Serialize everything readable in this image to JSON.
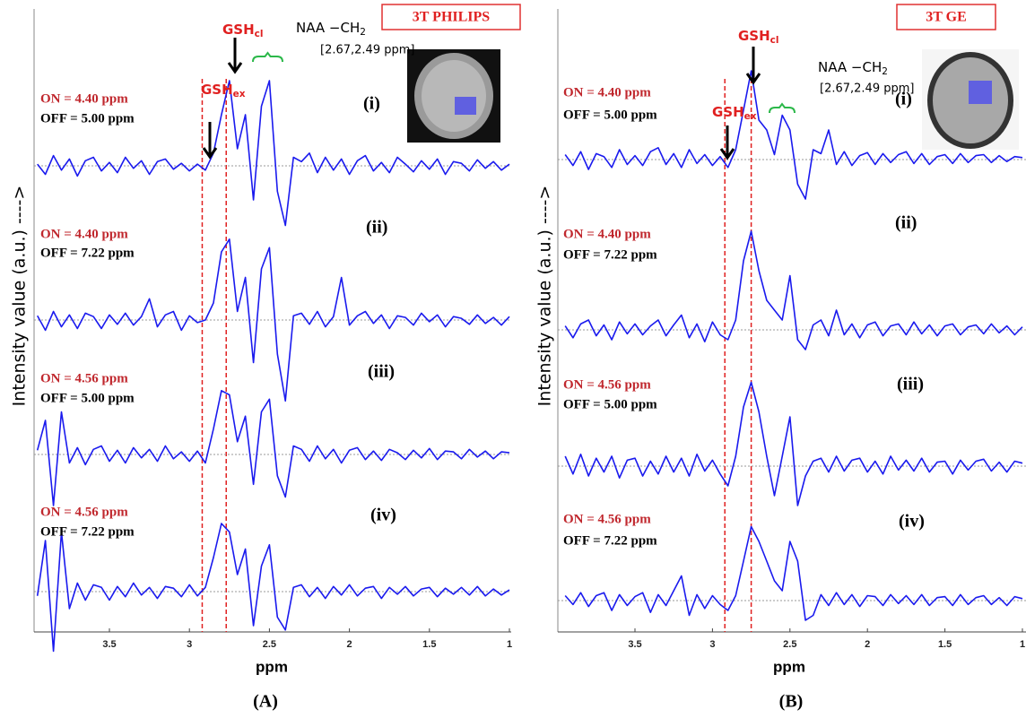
{
  "chart_data": [
    {
      "type": "line",
      "title": "3T PHILIPS",
      "panel_label": "(A)",
      "xlabel": "ppm",
      "ylabel": "Intensity value (a.u.) ---->",
      "xlim": [
        3.97,
        1.0
      ],
      "xticks": [
        3.5,
        3,
        2.5,
        2,
        1.5,
        1
      ],
      "reference_lines": [
        2.92,
        2.77
      ],
      "annotations": {
        "gsh_cl": "GSH",
        "gsh_cl_sub": "cl",
        "gsh_ex": "GSH",
        "gsh_ex_sub": "ex",
        "naa": "NAA −CH",
        "naa_sub": "2",
        "naa_range": "[2.67,2.49 ppm]"
      },
      "x": [
        3.95,
        3.9,
        3.85,
        3.8,
        3.75,
        3.7,
        3.65,
        3.6,
        3.55,
        3.5,
        3.45,
        3.4,
        3.35,
        3.3,
        3.25,
        3.2,
        3.15,
        3.1,
        3.05,
        3.0,
        2.95,
        2.9,
        2.85,
        2.8,
        2.75,
        2.7,
        2.65,
        2.6,
        2.55,
        2.5,
        2.45,
        2.4,
        2.35,
        2.3,
        2.25,
        2.2,
        2.15,
        2.1,
        2.05,
        2.0,
        1.95,
        1.9,
        1.85,
        1.8,
        1.75,
        1.7,
        1.65,
        1.6,
        1.55,
        1.5,
        1.45,
        1.4,
        1.35,
        1.3,
        1.25,
        1.2,
        1.15,
        1.1,
        1.05,
        1.0
      ],
      "series": [
        {
          "name": "(i)",
          "on": "ON = 4.40 ppm",
          "off": "OFF = 5.00 ppm",
          "color": "#1a1aee",
          "values": [
            0.02,
            -0.1,
            0.12,
            -0.05,
            0.08,
            -0.12,
            0.06,
            0.1,
            -0.06,
            0.04,
            -0.08,
            0.1,
            -0.03,
            0.06,
            -0.1,
            0.05,
            0.08,
            -0.04,
            0.03,
            -0.06,
            0.02,
            -0.05,
            0.15,
            0.6,
            1.0,
            0.2,
            0.6,
            -0.4,
            0.7,
            1.0,
            -0.3,
            -0.7,
            0.1,
            0.05,
            0.15,
            -0.08,
            0.1,
            -0.05,
            0.08,
            -0.1,
            0.06,
            0.12,
            -0.06,
            0.04,
            -0.08,
            0.1,
            0.02,
            -0.07,
            0.06,
            -0.04,
            0.08,
            -0.1,
            0.05,
            0.03,
            -0.06,
            0.07,
            -0.03,
            0.05,
            -0.05,
            0.02
          ]
        },
        {
          "name": "(ii)",
          "on": "ON = 4.40 ppm",
          "off": "OFF = 7.22 ppm",
          "color": "#1a1aee",
          "values": [
            0.05,
            -0.12,
            0.1,
            -0.08,
            0.06,
            -0.1,
            0.08,
            0.04,
            -0.1,
            0.06,
            -0.05,
            0.08,
            -0.06,
            0.04,
            0.25,
            -0.08,
            0.06,
            0.1,
            -0.12,
            0.05,
            -0.03,
            0.0,
            0.2,
            0.8,
            0.95,
            0.1,
            0.5,
            -0.5,
            0.6,
            0.85,
            -0.4,
            -0.95,
            0.05,
            0.08,
            -0.05,
            0.1,
            -0.08,
            0.04,
            0.5,
            -0.06,
            0.05,
            0.1,
            -0.04,
            0.06,
            -0.1,
            0.05,
            0.03,
            -0.06,
            0.08,
            -0.02,
            0.06,
            -0.08,
            0.04,
            0.02,
            -0.05,
            0.06,
            -0.04,
            0.03,
            -0.06,
            0.04
          ]
        },
        {
          "name": "(iii)",
          "on": "ON = 4.56 ppm",
          "off": "OFF = 5.00 ppm",
          "color": "#1a1aee",
          "values": [
            0.05,
            0.4,
            -0.6,
            0.5,
            -0.1,
            0.08,
            -0.12,
            0.06,
            0.1,
            -0.08,
            0.05,
            -0.1,
            0.08,
            -0.04,
            0.06,
            -0.08,
            0.1,
            -0.05,
            0.03,
            -0.08,
            0.04,
            -0.1,
            0.3,
            0.75,
            0.7,
            0.15,
            0.45,
            -0.35,
            0.5,
            0.65,
            -0.25,
            -0.5,
            0.1,
            0.06,
            -0.08,
            0.1,
            -0.05,
            0.06,
            -0.1,
            0.05,
            0.08,
            -0.06,
            0.04,
            -0.07,
            0.06,
            0.02,
            -0.06,
            0.05,
            -0.04,
            0.07,
            -0.06,
            0.04,
            0.03,
            -0.05,
            0.06,
            -0.03,
            0.04,
            -0.05,
            0.03,
            0.02
          ]
        },
        {
          "name": "(iv)",
          "on": "ON = 4.56 ppm",
          "off": "OFF = 7.22 ppm",
          "color": "#1a1aee",
          "values": [
            -0.05,
            0.6,
            -0.7,
            0.7,
            -0.2,
            0.1,
            -0.1,
            0.08,
            0.05,
            -0.1,
            0.06,
            -0.06,
            0.1,
            -0.04,
            0.05,
            -0.08,
            0.06,
            0.04,
            -0.06,
            0.08,
            -0.05,
            0.05,
            0.4,
            0.8,
            0.7,
            0.2,
            0.5,
            -0.4,
            0.3,
            0.55,
            -0.3,
            -0.45,
            0.05,
            0.08,
            -0.06,
            0.05,
            -0.08,
            0.06,
            -0.04,
            0.08,
            -0.05,
            0.04,
            0.06,
            -0.08,
            0.05,
            -0.03,
            0.06,
            -0.05,
            0.03,
            0.05,
            -0.06,
            0.04,
            -0.03,
            0.05,
            -0.04,
            0.06,
            -0.05,
            0.03,
            -0.04,
            0.02
          ]
        }
      ]
    },
    {
      "type": "line",
      "title": "3T GE",
      "panel_label": "(B)",
      "xlabel": "ppm",
      "ylabel": "Intensity value (a.u.) ---->",
      "xlim": [
        4.0,
        1.0
      ],
      "xticks": [
        3.5,
        3,
        2.5,
        2,
        1.5,
        1
      ],
      "reference_lines": [
        2.92,
        2.75
      ],
      "annotations": {
        "gsh_cl": "GSH",
        "gsh_cl_sub": "cl",
        "gsh_ex": "GSH",
        "gsh_ex_sub": "ex",
        "naa": "NAA −CH",
        "naa_sub": "2",
        "naa_range": "[2.67,2.49 ppm]"
      },
      "x": [
        3.95,
        3.9,
        3.85,
        3.8,
        3.75,
        3.7,
        3.65,
        3.6,
        3.55,
        3.5,
        3.45,
        3.4,
        3.35,
        3.3,
        3.25,
        3.2,
        3.15,
        3.1,
        3.05,
        3.0,
        2.95,
        2.9,
        2.85,
        2.8,
        2.75,
        2.7,
        2.65,
        2.6,
        2.55,
        2.5,
        2.45,
        2.4,
        2.35,
        2.3,
        2.25,
        2.2,
        2.15,
        2.1,
        2.05,
        2.0,
        1.95,
        1.9,
        1.85,
        1.8,
        1.75,
        1.7,
        1.65,
        1.6,
        1.55,
        1.5,
        1.45,
        1.4,
        1.35,
        1.3,
        1.25,
        1.2,
        1.15,
        1.1,
        1.05,
        1.0
      ],
      "series": [
        {
          "name": "(i)",
          "on": "ON = 4.40 ppm",
          "off": "OFF = 5.00 ppm",
          "color": "#1a1aee",
          "values": [
            0.05,
            -0.06,
            0.08,
            -0.1,
            0.06,
            0.03,
            -0.08,
            0.1,
            -0.05,
            0.04,
            -0.06,
            0.08,
            0.12,
            -0.05,
            0.06,
            -0.08,
            0.1,
            -0.04,
            0.05,
            -0.06,
            0.03,
            -0.08,
            0.1,
            0.5,
            0.9,
            0.4,
            0.3,
            0.05,
            0.45,
            0.3,
            -0.25,
            -0.4,
            0.1,
            0.06,
            0.3,
            -0.05,
            0.08,
            -0.06,
            0.04,
            0.07,
            -0.05,
            0.06,
            -0.03,
            0.05,
            0.08,
            -0.04,
            0.06,
            -0.05,
            0.03,
            0.05,
            -0.04,
            0.06,
            -0.03,
            0.04,
            0.05,
            -0.03,
            0.04,
            -0.02,
            0.03,
            0.02
          ]
        },
        {
          "name": "(ii)",
          "on": "ON = 4.40 ppm",
          "off": "OFF = 7.22 ppm",
          "color": "#1a1aee",
          "values": [
            0.04,
            -0.08,
            0.06,
            0.1,
            -0.06,
            0.05,
            -0.1,
            0.08,
            -0.04,
            0.06,
            -0.05,
            0.04,
            0.1,
            -0.06,
            0.05,
            0.15,
            -0.08,
            0.06,
            -0.12,
            0.08,
            -0.05,
            -0.1,
            0.1,
            0.7,
            1.0,
            0.6,
            0.3,
            0.2,
            0.1,
            0.55,
            -0.1,
            -0.2,
            0.05,
            0.1,
            -0.06,
            0.2,
            -0.05,
            0.06,
            -0.08,
            0.05,
            0.08,
            -0.06,
            0.04,
            0.06,
            -0.05,
            0.08,
            -0.04,
            0.05,
            -0.06,
            0.04,
            0.06,
            -0.05,
            0.03,
            0.05,
            -0.04,
            0.06,
            -0.03,
            0.04,
            -0.05,
            0.03
          ]
        },
        {
          "name": "(iii)",
          "on": "ON = 4.56 ppm",
          "off": "OFF = 5.00 ppm",
          "color": "#1a1aee",
          "values": [
            0.1,
            -0.08,
            0.12,
            -0.1,
            0.08,
            -0.06,
            0.1,
            -0.12,
            0.06,
            0.08,
            -0.1,
            0.05,
            -0.08,
            0.1,
            -0.06,
            0.08,
            -0.1,
            0.12,
            -0.05,
            0.06,
            -0.08,
            -0.2,
            0.1,
            0.6,
            0.85,
            0.55,
            0.1,
            -0.3,
            0.1,
            0.5,
            -0.4,
            -0.1,
            0.05,
            0.08,
            -0.06,
            0.1,
            -0.05,
            0.06,
            0.08,
            -0.06,
            0.05,
            -0.08,
            0.1,
            -0.04,
            0.06,
            -0.05,
            0.08,
            -0.06,
            0.04,
            0.05,
            -0.08,
            0.06,
            -0.04,
            0.05,
            0.07,
            -0.05,
            0.04,
            -0.06,
            0.05,
            0.03
          ]
        },
        {
          "name": "(iv)",
          "on": "ON = 4.56 ppm",
          "off": "OFF = 7.22 ppm",
          "color": "#1a1aee",
          "values": [
            0.05,
            -0.04,
            0.08,
            -0.06,
            0.05,
            0.08,
            -0.1,
            0.06,
            -0.05,
            0.04,
            0.08,
            -0.12,
            0.06,
            -0.05,
            0.1,
            0.25,
            -0.15,
            0.06,
            -0.08,
            0.05,
            -0.04,
            -0.1,
            0.05,
            0.4,
            0.75,
            0.6,
            0.4,
            0.2,
            0.1,
            0.6,
            0.4,
            -0.2,
            -0.15,
            0.06,
            -0.05,
            0.08,
            -0.04,
            0.06,
            -0.06,
            0.05,
            0.04,
            -0.05,
            0.06,
            -0.03,
            0.05,
            -0.04,
            0.06,
            -0.05,
            0.03,
            0.04,
            -0.05,
            0.06,
            -0.04,
            0.03,
            0.05,
            -0.04,
            0.03,
            -0.05,
            0.04,
            0.02
          ]
        }
      ]
    }
  ]
}
